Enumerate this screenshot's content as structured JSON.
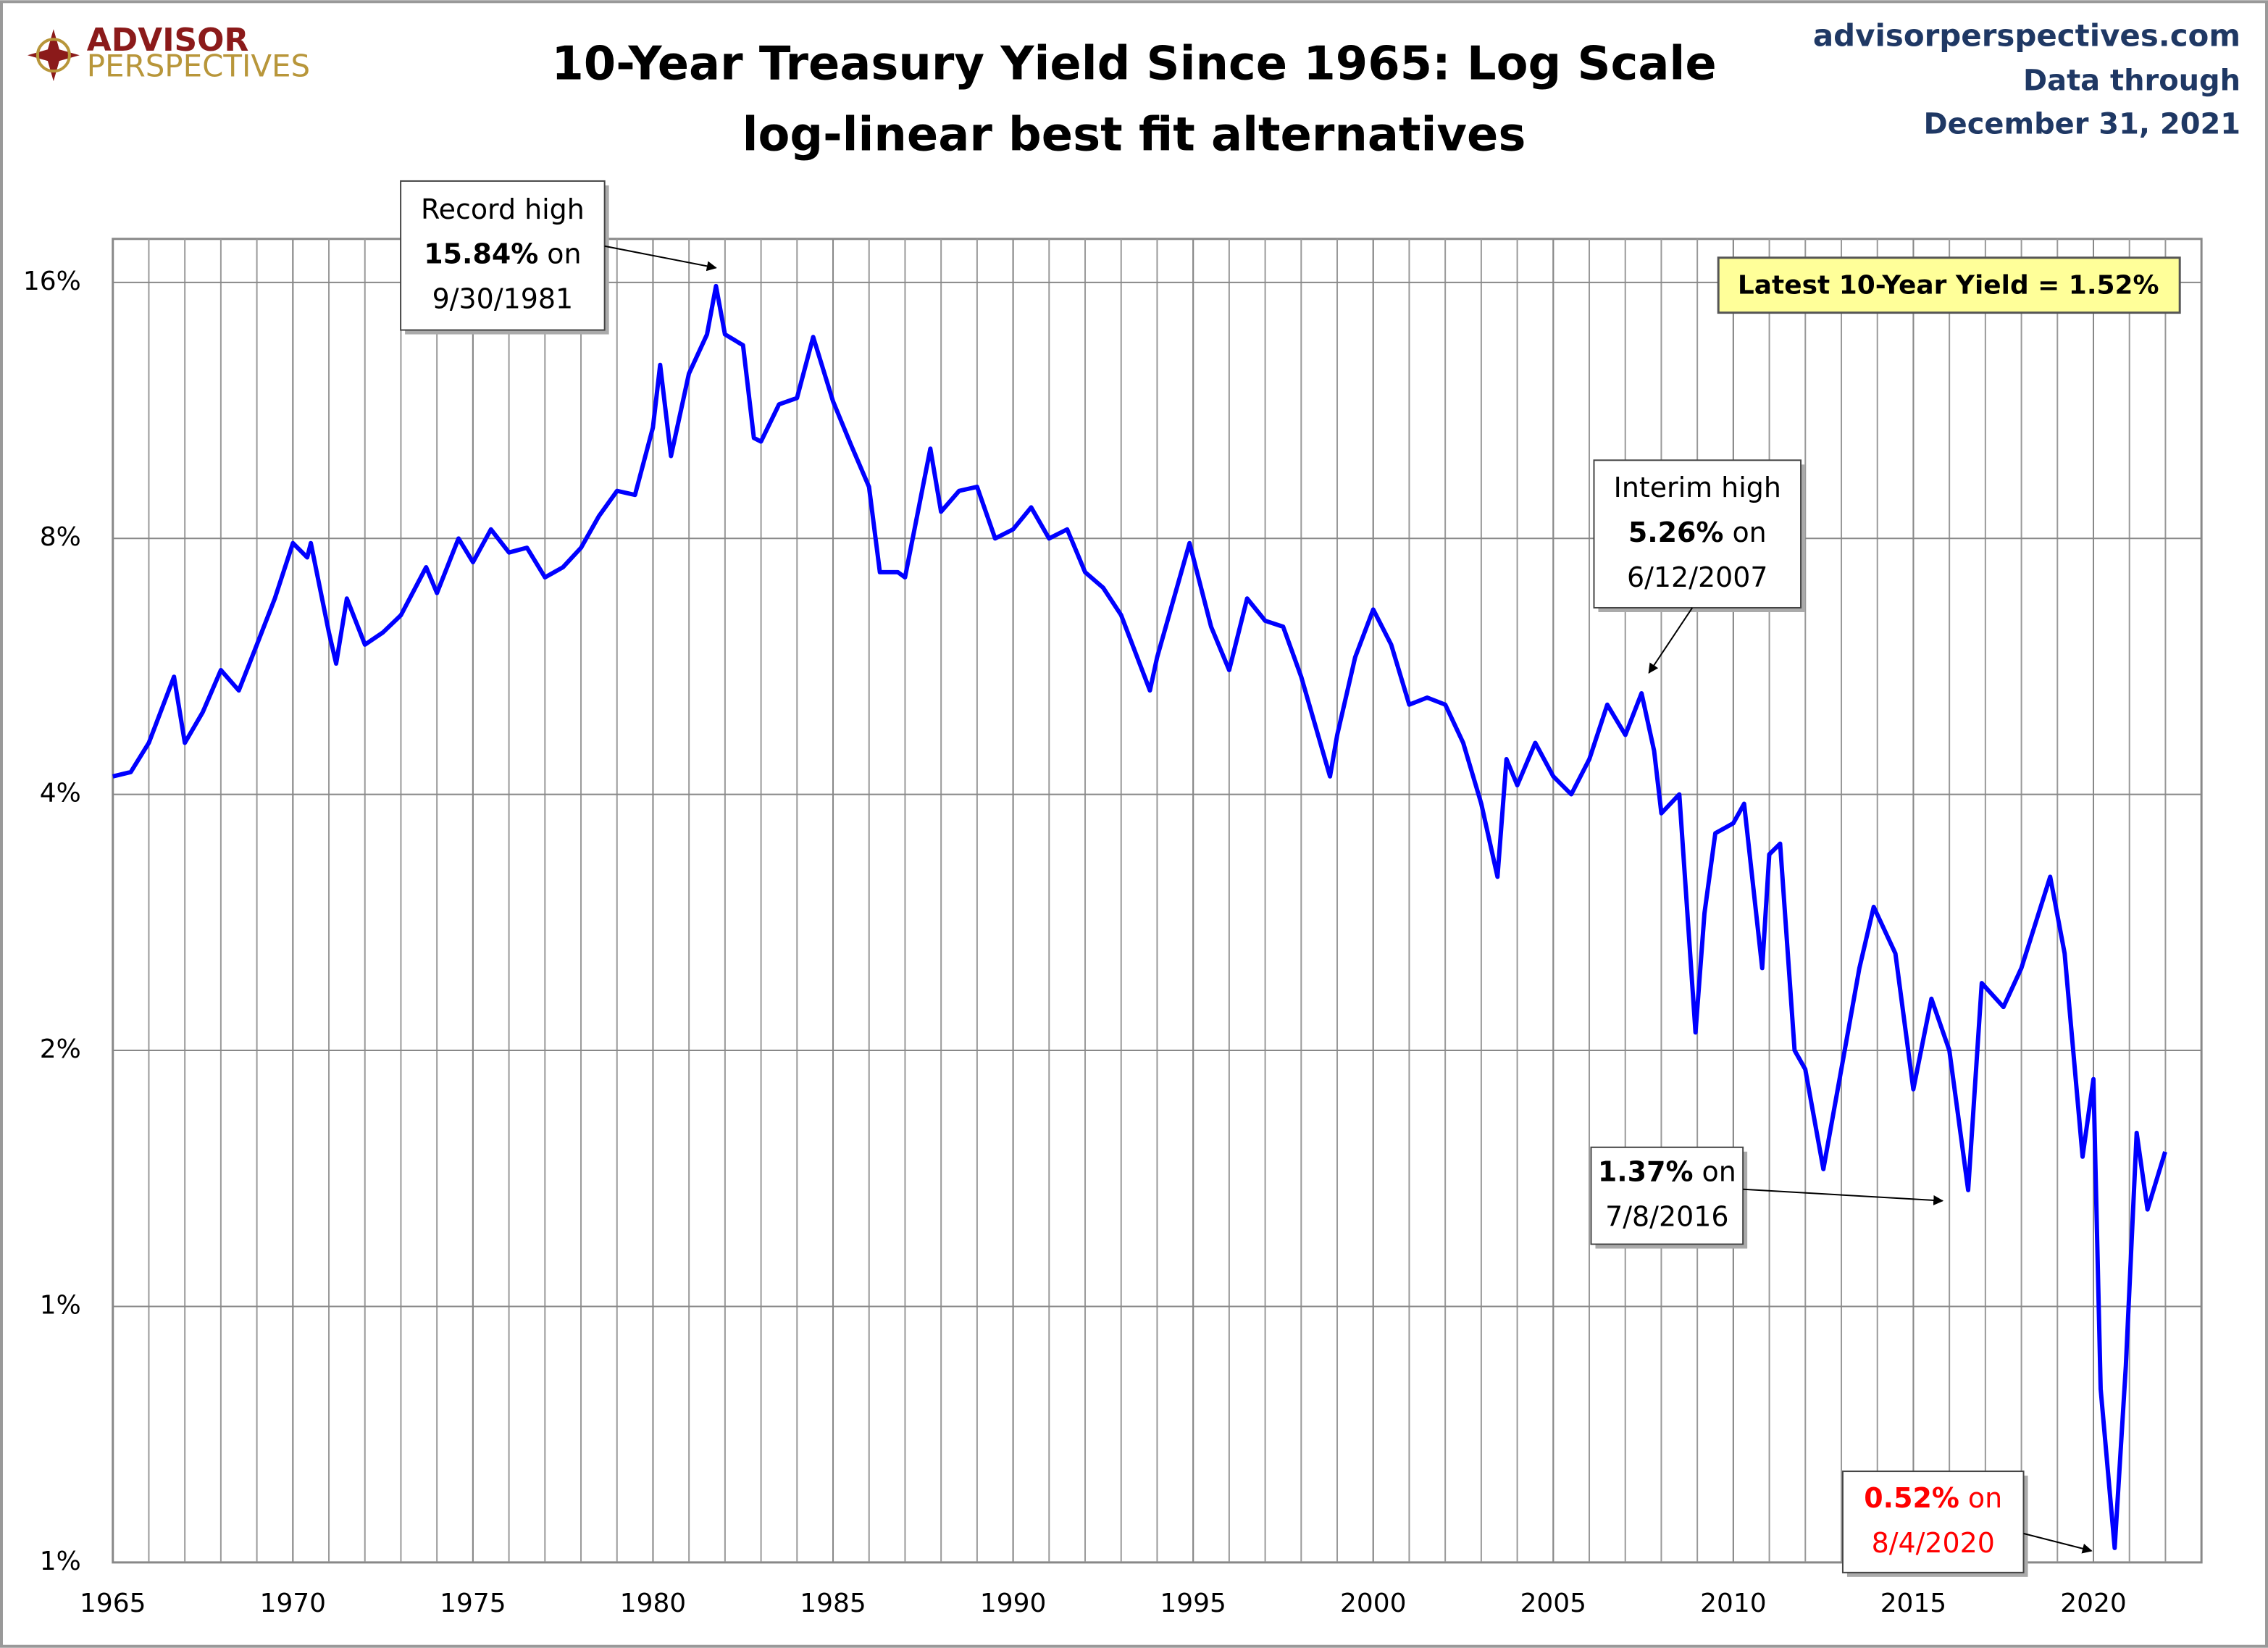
{
  "logo": {
    "line1": "ADVISOR",
    "line2": "PERSPECTIVES"
  },
  "source": {
    "site": "advisorperspectives.com",
    "line1": "Data through",
    "line2": "December 31, 2021"
  },
  "chart_data": {
    "type": "line",
    "title": "10-Year Treasury Yield Since 1965: Log Scale",
    "subtitle": "log-linear best fit alternatives",
    "log_scale": true,
    "grid": true,
    "minor_grid_step": 1,
    "xlim": [
      1965,
      2023
    ],
    "xticks": [
      1965,
      1970,
      1975,
      1980,
      1985,
      1990,
      1995,
      2000,
      2005,
      2010,
      2015,
      2020
    ],
    "ylim": [
      0.5,
      18
    ],
    "yticks": [
      {
        "value": 0.5,
        "label": "1%"
      },
      {
        "value": 1,
        "label": "1%"
      },
      {
        "value": 2,
        "label": "2%"
      },
      {
        "value": 4,
        "label": "4%"
      },
      {
        "value": 8,
        "label": "8%"
      },
      {
        "value": 16,
        "label": "16%"
      }
    ],
    "series": [
      {
        "name": "10-Year Treasury Yield",
        "color": "#0000ff",
        "x": [
          1965.0,
          1965.5,
          1966.0,
          1966.7,
          1967.0,
          1967.5,
          1968.0,
          1968.5,
          1969.0,
          1969.5,
          1970.0,
          1970.4,
          1970.5,
          1971.0,
          1971.2,
          1971.5,
          1972.0,
          1972.5,
          1973.0,
          1973.7,
          1974.0,
          1974.6,
          1975.0,
          1975.5,
          1976.0,
          1976.5,
          1977.0,
          1977.5,
          1978.0,
          1978.5,
          1979.0,
          1979.5,
          1980.0,
          1980.2,
          1980.5,
          1981.0,
          1981.5,
          1981.75,
          1982.0,
          1982.5,
          1982.8,
          1983.0,
          1983.5,
          1984.0,
          1984.45,
          1985.0,
          1985.5,
          1986.0,
          1986.3,
          1986.8,
          1987.0,
          1987.7,
          1988.0,
          1988.5,
          1989.0,
          1989.5,
          1990.0,
          1990.5,
          1991.0,
          1991.5,
          1992.0,
          1992.5,
          1993.0,
          1993.8,
          1994.0,
          1994.9,
          1995.5,
          1996.0,
          1996.5,
          1997.0,
          1997.5,
          1998.0,
          1998.8,
          1999.0,
          1999.5,
          2000.0,
          2000.5,
          2001.0,
          2001.5,
          2002.0,
          2002.5,
          2003.0,
          2003.45,
          2003.7,
          2004.0,
          2004.5,
          2005.0,
          2005.5,
          2006.0,
          2006.5,
          2007.0,
          2007.45,
          2007.8,
          2008.0,
          2008.5,
          2008.95,
          2009.2,
          2009.5,
          2010.0,
          2010.3,
          2010.8,
          2011.0,
          2011.3,
          2011.7,
          2012.0,
          2012.5,
          2013.0,
          2013.5,
          2013.9,
          2014.5,
          2015.0,
          2015.5,
          2016.0,
          2016.52,
          2016.9,
          2017.5,
          2018.0,
          2018.8,
          2019.2,
          2019.7,
          2020.0,
          2020.2,
          2020.59,
          2020.9,
          2021.2,
          2021.5,
          2021.99
        ],
        "values": [
          4.2,
          4.25,
          4.6,
          5.5,
          4.6,
          5.0,
          5.6,
          5.3,
          6.0,
          6.8,
          7.9,
          7.6,
          7.9,
          6.2,
          5.7,
          6.8,
          6.0,
          6.2,
          6.5,
          7.4,
          6.9,
          8.0,
          7.5,
          8.2,
          7.7,
          7.8,
          7.2,
          7.4,
          7.8,
          8.5,
          9.1,
          9.0,
          10.8,
          12.8,
          10.0,
          12.5,
          13.9,
          15.84,
          13.9,
          13.5,
          10.5,
          10.4,
          11.5,
          11.7,
          13.8,
          11.6,
          10.3,
          9.2,
          7.3,
          7.3,
          7.2,
          10.2,
          8.6,
          9.1,
          9.2,
          8.0,
          8.2,
          8.7,
          8.0,
          8.2,
          7.3,
          7.0,
          6.5,
          5.3,
          5.8,
          7.9,
          6.3,
          5.6,
          6.8,
          6.4,
          6.3,
          5.5,
          4.2,
          4.7,
          5.8,
          6.6,
          6.0,
          5.1,
          5.2,
          5.1,
          4.6,
          3.9,
          3.2,
          4.4,
          4.1,
          4.6,
          4.2,
          4.0,
          4.4,
          5.1,
          4.7,
          5.26,
          4.5,
          3.8,
          4.0,
          2.1,
          2.9,
          3.6,
          3.7,
          3.9,
          2.5,
          3.4,
          3.5,
          2.0,
          1.9,
          1.45,
          1.9,
          2.5,
          2.95,
          2.6,
          1.8,
          2.3,
          2.0,
          1.37,
          2.4,
          2.25,
          2.5,
          3.2,
          2.6,
          1.5,
          1.85,
          0.8,
          0.52,
          0.85,
          1.6,
          1.3,
          1.52
        ]
      }
    ],
    "callout": "Latest 10-Year Yield = 1.52%",
    "annotations": [
      {
        "lines": [
          [
            {
              "text": "Record high"
            }
          ],
          [
            {
              "text": "15.84%",
              "bold": true
            },
            {
              "text": " on"
            }
          ],
          [
            {
              "text": "9/30/1981"
            }
          ]
        ]
      },
      {
        "lines": [
          [
            {
              "text": "Interim high"
            }
          ],
          [
            {
              "text": "5.26%",
              "bold": true
            },
            {
              "text": " on"
            }
          ],
          [
            {
              "text": "6/12/2007"
            }
          ]
        ]
      },
      {
        "lines": [
          [
            {
              "text": "1.37%",
              "bold": true
            },
            {
              "text": " on"
            }
          ],
          [
            {
              "text": "7/8/2016"
            }
          ]
        ]
      },
      {
        "lines": [
          [
            {
              "text": "0.52%",
              "bold": true,
              "color": "#ff0000"
            },
            {
              "text": " on",
              "color": "#ff0000"
            }
          ],
          [
            {
              "text": "8/4/2020",
              "color": "#ff0000"
            }
          ]
        ]
      }
    ]
  }
}
